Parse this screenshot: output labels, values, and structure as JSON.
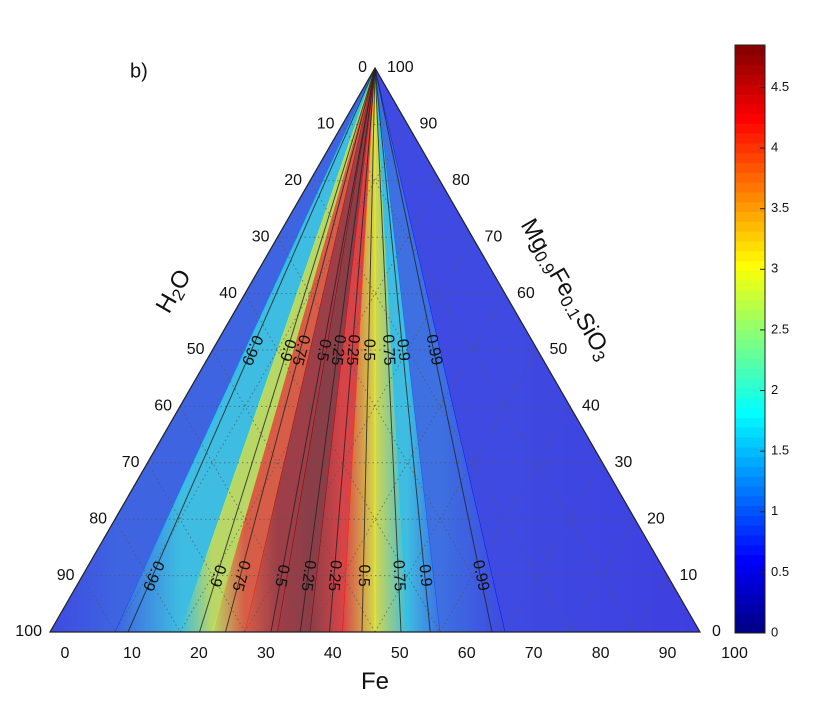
{
  "chart_data": {
    "type": "ternary",
    "panel_label": "b)",
    "left_label": [
      "H",
      "2",
      "O"
    ],
    "bottom_label": [
      "Fe"
    ],
    "right_label": [
      "Mg",
      "0.9",
      "Fe",
      "0.1",
      "SiO",
      "3"
    ],
    "left_ticks": [
      0,
      10,
      20,
      30,
      40,
      50,
      60,
      70,
      80,
      90,
      100
    ],
    "bottom_ticks": [
      0,
      10,
      20,
      30,
      40,
      50,
      60,
      70,
      80,
      90,
      100
    ],
    "right_ticks": [
      0,
      10,
      20,
      30,
      40,
      50,
      60,
      70,
      80,
      90,
      100
    ],
    "grid": true,
    "field": {
      "fe": [
        0,
        10,
        20,
        25,
        30,
        35,
        40,
        45,
        50,
        55,
        60,
        70,
        100
      ],
      "values": [
        0.7,
        0.9,
        1.6,
        2.8,
        4.0,
        4.7,
        4.85,
        4.2,
        3.0,
        1.6,
        1.0,
        0.7,
        0.6
      ]
    },
    "contours": [
      {
        "level": 0.99,
        "fe": 12
      },
      {
        "level": 0.9,
        "fe": 23
      },
      {
        "level": 0.75,
        "fe": 27
      },
      {
        "level": 0.5,
        "fe": 34
      },
      {
        "level": 0.25,
        "fe": 38.5
      },
      {
        "level": 0.25,
        "fe": 43
      },
      {
        "level": 0.5,
        "fe": 48
      },
      {
        "level": 0.75,
        "fe": 54
      },
      {
        "level": 0.9,
        "fe": 58.5
      },
      {
        "level": 0.99,
        "fe": 68
      }
    ],
    "colorbar": {
      "clim": [
        0,
        4.85
      ],
      "ticks": [
        0,
        0.5,
        1,
        1.5,
        2,
        2.5,
        3,
        3.5,
        4,
        4.5
      ]
    }
  }
}
